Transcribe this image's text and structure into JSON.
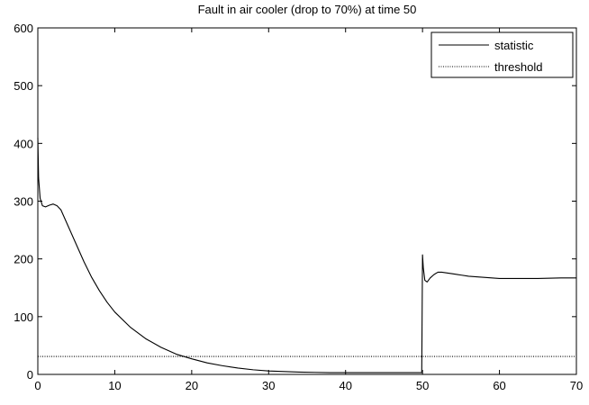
{
  "chart_data": {
    "type": "line",
    "title": "Fault in air cooler (drop to 70%) at time 50",
    "xlabel": "",
    "ylabel": "",
    "xlim": [
      0,
      70
    ],
    "ylim": [
      0,
      600
    ],
    "xticks": [
      0,
      10,
      20,
      30,
      40,
      50,
      60,
      70
    ],
    "yticks": [
      0,
      100,
      200,
      300,
      400,
      500,
      600
    ],
    "grid": false,
    "legend_position": "top-right",
    "series": [
      {
        "name": "statistic",
        "style": "solid",
        "color": "#000000",
        "x": [
          0,
          0.1,
          0.3,
          0.6,
          1,
          1.5,
          2,
          2.5,
          3,
          3.5,
          4,
          5,
          6,
          7,
          8,
          9,
          10,
          12,
          14,
          16,
          18,
          20,
          22,
          24,
          26,
          28,
          30,
          32,
          34,
          36,
          38,
          40,
          42,
          44,
          46,
          48,
          49.9,
          50.0,
          50.1,
          50.3,
          50.6,
          51,
          51.5,
          52,
          52.5,
          53,
          54,
          55,
          56,
          57,
          58,
          59,
          60,
          62,
          65,
          68,
          70
        ],
        "y": [
          410,
          340,
          305,
          292,
          290,
          293,
          295,
          292,
          285,
          270,
          255,
          225,
          195,
          168,
          145,
          125,
          108,
          82,
          62,
          47,
          35,
          27,
          20,
          15,
          11,
          8,
          6,
          5,
          4,
          3.5,
          3,
          3,
          3,
          3,
          3,
          3,
          3,
          207,
          185,
          163,
          160,
          167,
          173,
          177,
          177,
          176,
          174,
          172,
          170,
          169,
          168,
          167,
          166,
          166,
          166,
          167,
          167
        ]
      },
      {
        "name": "threshold",
        "style": "dotted",
        "color": "#000000",
        "x": [
          0,
          70
        ],
        "y": [
          31,
          31
        ]
      }
    ]
  }
}
